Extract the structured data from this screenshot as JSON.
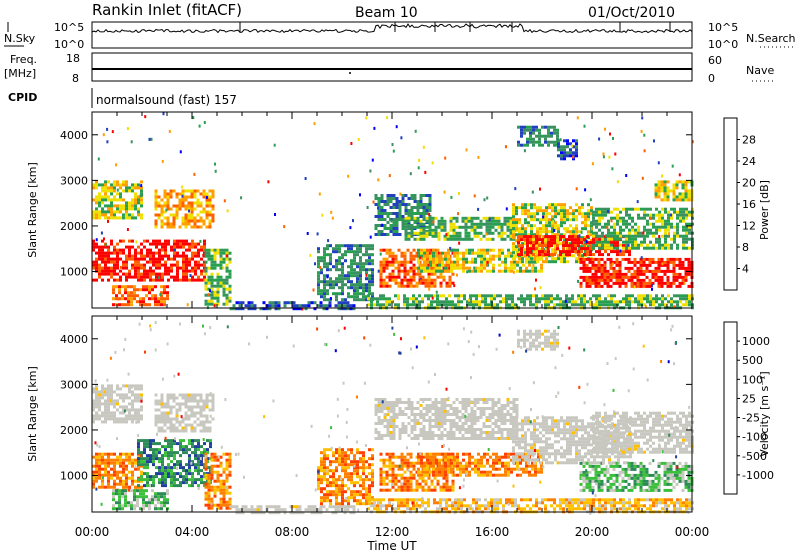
{
  "header": {
    "station": "Rankin Inlet (fitACF)",
    "beam": "Beam 10",
    "date": "01/Oct/2010"
  },
  "summary": {
    "nsky_label": "N.Sky",
    "nsky_ticks": [
      "10^5",
      "10^0"
    ],
    "nsearch_label": "N.Search",
    "nsearch_ticks": [
      "10^5",
      "10^0"
    ],
    "freq_label": "Freq.",
    "freq_unit": "[MHz]",
    "freq_ticks": [
      "18",
      "8"
    ],
    "nave_label": "Nave",
    "nave_ticks": [
      "60",
      "0"
    ],
    "cpid_label": "CPID",
    "cpid_text": "normalsound (fast) 157"
  },
  "colors": {
    "power_scale": [
      "#0000ff",
      "#2040c0",
      "#3a9060",
      "#28a050",
      "#f0e000",
      "#ffa000",
      "#ff6000",
      "#ff0000"
    ],
    "velocity_scale": [
      "#ff0000",
      "#ff4000",
      "#ff8000",
      "#ffc000",
      "#c8c8c0",
      "#c8c8c0",
      "#3cc03c",
      "#2e8b57",
      "#2040a0",
      "#0000d0"
    ],
    "velocity_ground": "#c8c8c0"
  },
  "chart_data": [
    {
      "type": "heatmap",
      "name": "power",
      "ylabel": "Slant Range [km]",
      "yticks": [
        1000,
        2000,
        3000,
        4000
      ],
      "ylim": [
        200,
        4500
      ],
      "xlim": [
        0,
        24
      ],
      "colorbar_label": "Power [dB]",
      "colorbar_ticks": [
        "4",
        "8",
        "12",
        "16",
        "20",
        "24",
        "28"
      ],
      "regions": [
        {
          "t0": 0.0,
          "t1": 4.5,
          "r0": 800,
          "r1": 1700,
          "level": 7
        },
        {
          "t0": 0.0,
          "t1": 2.0,
          "r0": 2200,
          "r1": 3000,
          "level": 4
        },
        {
          "t0": 2.5,
          "t1": 4.8,
          "r0": 2000,
          "r1": 2800,
          "level": 5
        },
        {
          "t0": 0.8,
          "t1": 3.0,
          "r0": 300,
          "r1": 700,
          "level": 6
        },
        {
          "t0": 4.5,
          "t1": 5.5,
          "r0": 300,
          "r1": 1500,
          "level": 3
        },
        {
          "t0": 5.5,
          "t1": 10.5,
          "r0": 200,
          "r1": 350,
          "level": 1
        },
        {
          "t0": 9.0,
          "t1": 11.2,
          "r0": 400,
          "r1": 1600,
          "level": 2
        },
        {
          "t0": 11.3,
          "t1": 13.5,
          "r0": 1800,
          "r1": 2700,
          "level": 2
        },
        {
          "t0": 11.5,
          "t1": 14.5,
          "r0": 700,
          "r1": 1500,
          "level": 6
        },
        {
          "t0": 12.5,
          "t1": 17.0,
          "r0": 1700,
          "r1": 2200,
          "level": 3
        },
        {
          "t0": 13.0,
          "t1": 18.0,
          "r0": 1000,
          "r1": 1500,
          "level": 4
        },
        {
          "t0": 16.8,
          "t1": 20.0,
          "r0": 1200,
          "r1": 2500,
          "level": 4
        },
        {
          "t0": 17.0,
          "t1": 21.5,
          "r0": 1400,
          "r1": 1800,
          "level": 7
        },
        {
          "t0": 19.5,
          "t1": 24.0,
          "r0": 700,
          "r1": 1300,
          "level": 7
        },
        {
          "t0": 20.0,
          "t1": 24.0,
          "r0": 1500,
          "r1": 2400,
          "level": 3
        },
        {
          "t0": 17.0,
          "t1": 18.6,
          "r0": 3800,
          "r1": 4200,
          "level": 2
        },
        {
          "t0": 18.6,
          "t1": 19.4,
          "r0": 3500,
          "r1": 3900,
          "level": 1
        },
        {
          "t0": 11.0,
          "t1": 24.0,
          "r0": 200,
          "r1": 500,
          "level": 3
        },
        {
          "t0": 22.5,
          "t1": 24.0,
          "r0": 2600,
          "r1": 3000,
          "level": 4
        }
      ]
    },
    {
      "type": "heatmap",
      "name": "velocity",
      "ylabel": "Slant Range [km]",
      "yticks": [
        1000,
        2000,
        3000,
        4000
      ],
      "ylim": [
        200,
        4500
      ],
      "xlim": [
        0,
        24
      ],
      "xticks": [
        "00:00",
        "04:00",
        "08:00",
        "12:00",
        "16:00",
        "20:00",
        "00:00"
      ],
      "xlabel": "Time UT",
      "colorbar_label": "Velocity [m s^-1]",
      "colorbar_ticks": [
        "-1000",
        "-500",
        "-100",
        "-25",
        "25",
        "100",
        "500",
        "1000"
      ],
      "regions": [
        {
          "t0": 0.0,
          "t1": 2.0,
          "r0": 700,
          "r1": 1500,
          "level": 2
        },
        {
          "t0": 1.8,
          "t1": 4.8,
          "r0": 800,
          "r1": 1800,
          "level": 7
        },
        {
          "t0": 0.0,
          "t1": 2.0,
          "r0": 2200,
          "r1": 3000,
          "level": 4
        },
        {
          "t0": 2.5,
          "t1": 4.8,
          "r0": 2000,
          "r1": 2800,
          "level": 4
        },
        {
          "t0": 0.8,
          "t1": 3.0,
          "r0": 300,
          "r1": 700,
          "level": 6
        },
        {
          "t0": 4.5,
          "t1": 5.5,
          "r0": 300,
          "r1": 1500,
          "level": 2
        },
        {
          "t0": 5.5,
          "t1": 10.5,
          "r0": 200,
          "r1": 350,
          "level": 4
        },
        {
          "t0": 9.0,
          "t1": 11.2,
          "r0": 400,
          "r1": 1600,
          "level": 2
        },
        {
          "t0": 11.3,
          "t1": 17.0,
          "r0": 1800,
          "r1": 2700,
          "level": 4
        },
        {
          "t0": 11.5,
          "t1": 14.5,
          "r0": 700,
          "r1": 1500,
          "level": 2
        },
        {
          "t0": 13.0,
          "t1": 18.0,
          "r0": 1000,
          "r1": 1500,
          "level": 2
        },
        {
          "t0": 16.8,
          "t1": 21.5,
          "r0": 1300,
          "r1": 2300,
          "level": 4
        },
        {
          "t0": 19.5,
          "t1": 24.0,
          "r0": 700,
          "r1": 1300,
          "level": 6
        },
        {
          "t0": 20.0,
          "t1": 24.0,
          "r0": 1500,
          "r1": 2400,
          "level": 4
        },
        {
          "t0": 17.0,
          "t1": 18.6,
          "r0": 3800,
          "r1": 4200,
          "level": 4
        },
        {
          "t0": 11.0,
          "t1": 24.0,
          "r0": 200,
          "r1": 500,
          "level": 3
        }
      ]
    }
  ]
}
